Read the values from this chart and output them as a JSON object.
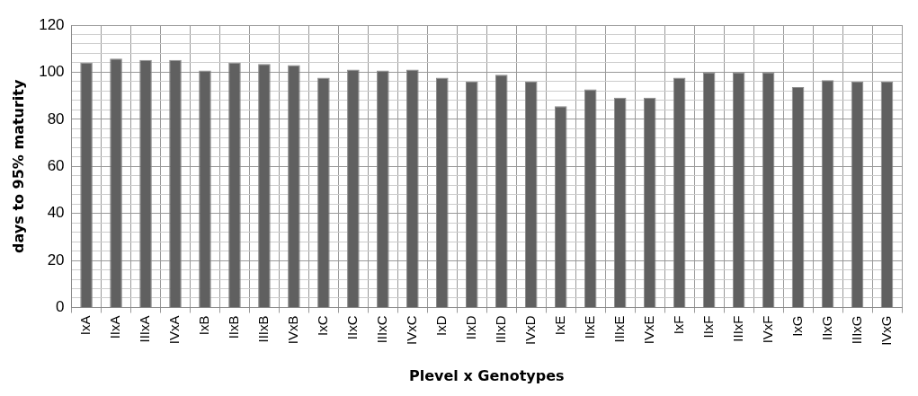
{
  "chart_data": {
    "type": "bar",
    "xlabel": "Plevel x Genotypes",
    "ylabel": "days to 95% maturity",
    "categories": [
      "IxA",
      "IIxA",
      "IIIxA",
      "IVxA",
      "IxB",
      "IIxB",
      "IIIxB",
      "IVxB",
      "IxC",
      "IIxC",
      "IIIxC",
      "IVxC",
      "IxD",
      "IIxD",
      "IIIxD",
      "IVxD",
      "IxE",
      "IIxE",
      "IIIxE",
      "IVxE",
      "IxF",
      "IIxF",
      "IIIxF",
      "IVxF",
      "IxG",
      "IIxG",
      "IIIxG",
      "IVxG"
    ],
    "values": [
      104.1,
      105.8,
      105.2,
      105.2,
      100.7,
      104.1,
      103.5,
      103,
      97.7,
      101.1,
      100.7,
      101.1,
      97.7,
      96,
      98.9,
      96,
      85.6,
      92.7,
      89.2,
      89.2,
      97.7,
      100,
      100,
      100,
      93.7,
      96.6,
      96,
      96
    ],
    "color": "#606060",
    "ylim": [
      0,
      120
    ],
    "yticks": [
      0,
      {
        "value": 4,
        "label": null
      },
      {
        "value": 8,
        "label": null
      },
      {
        "value": 12,
        "label": null
      },
      {
        "value": 16,
        "label": null
      },
      20,
      {
        "value": 24,
        "label": null
      },
      {
        "value": 28,
        "label": null
      },
      {
        "value": 32,
        "label": null
      },
      {
        "value": 36,
        "label": null
      },
      40,
      {
        "value": 44,
        "label": null
      },
      {
        "value": 48,
        "label": null
      },
      {
        "value": 52,
        "label": null
      },
      {
        "value": 56,
        "label": null
      },
      60,
      {
        "value": 64,
        "label": null
      },
      {
        "value": 68,
        "label": null
      },
      {
        "value": 72,
        "label": null
      },
      {
        "value": 76,
        "label": null
      },
      80,
      {
        "value": 84,
        "label": null
      },
      {
        "value": 88,
        "label": null
      },
      {
        "value": 92,
        "label": null
      },
      {
        "value": 96,
        "label": null
      },
      100,
      {
        "value": 104,
        "label": null
      },
      {
        "value": 108,
        "label": null
      },
      {
        "value": 112,
        "label": null
      },
      {
        "value": 116,
        "label": null
      },
      120
    ],
    "grid": true,
    "legend": false
  }
}
